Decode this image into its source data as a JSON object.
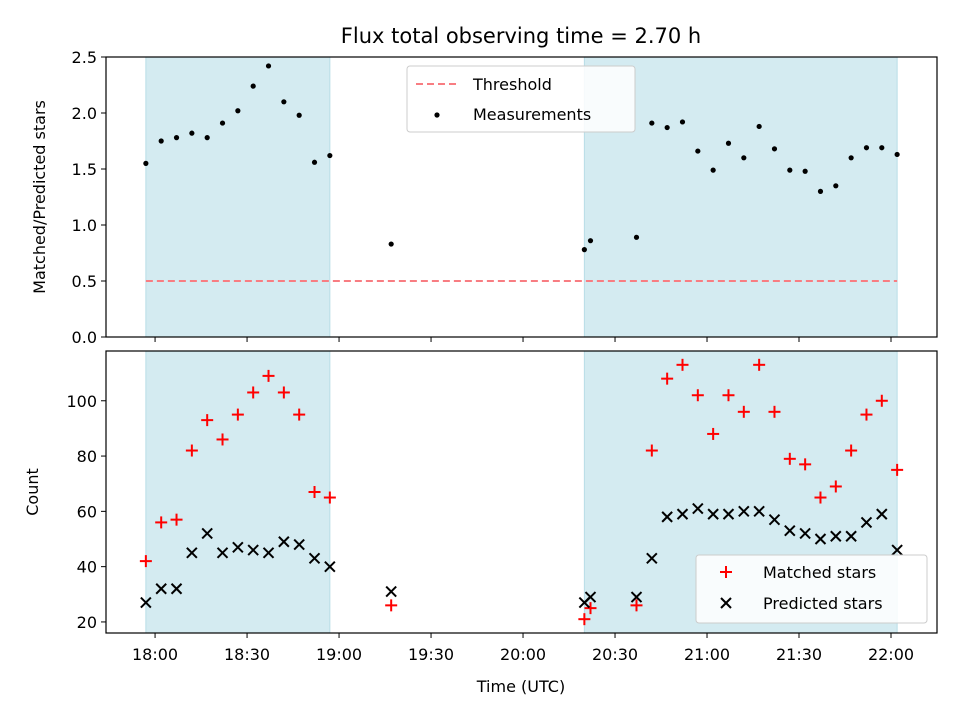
{
  "chart_data": [
    {
      "type": "scatter",
      "title": "Flux total observing time = 2.70 h",
      "xlabel": "",
      "ylabel": "Matched/Predicted stars",
      "ylim": [
        0,
        2.5
      ],
      "yticks": [
        0.0,
        0.5,
        1.0,
        1.5,
        2.0,
        2.5
      ],
      "ytick_labels": [
        "0.0",
        "0.5",
        "1.0",
        "1.5",
        "2.0",
        "2.5"
      ],
      "shaded_intervals_min": [
        [
          -3,
          57
        ],
        [
          140,
          242
        ]
      ],
      "threshold": {
        "name": "Threshold",
        "value": 0.5,
        "x_range_min": [
          -3,
          242
        ],
        "color": "#f87d82"
      },
      "legend_position": "upper-center",
      "series": [
        {
          "name": "Measurements",
          "color": "#000000",
          "x_min": [
            -3,
            2,
            7,
            12,
            17,
            22,
            27,
            32,
            37,
            42,
            47,
            52,
            57,
            77,
            140,
            142,
            157,
            162,
            167,
            172,
            177,
            182,
            187,
            192,
            197,
            202,
            207,
            212,
            217,
            222,
            227,
            232,
            237,
            242
          ],
          "y": [
            1.55,
            1.75,
            1.78,
            1.82,
            1.78,
            1.91,
            2.02,
            2.24,
            2.42,
            2.1,
            1.98,
            1.56,
            1.62,
            0.83,
            0.78,
            0.86,
            0.89,
            1.91,
            1.87,
            1.92,
            1.66,
            1.49,
            1.73,
            1.6,
            1.88,
            1.68,
            1.49,
            1.48,
            1.3,
            1.35,
            1.6,
            1.69,
            1.69,
            1.63
          ]
        }
      ]
    },
    {
      "type": "scatter",
      "xlabel": "Time (UTC)",
      "ylabel": "Count",
      "ylim": [
        16,
        118
      ],
      "yticks": [
        20,
        40,
        60,
        80,
        100
      ],
      "ytick_labels": [
        "20",
        "40",
        "60",
        "80",
        "100"
      ],
      "xlim_min": [
        -16,
        255
      ],
      "xticks_min": [
        0,
        30,
        60,
        90,
        120,
        150,
        180,
        210,
        240
      ],
      "xtick_labels": [
        "18:00",
        "18:30",
        "19:00",
        "19:30",
        "20:00",
        "20:30",
        "21:00",
        "21:30",
        "22:00"
      ],
      "shaded_intervals_min": [
        [
          -3,
          57
        ],
        [
          140,
          242
        ]
      ],
      "legend_position": "lower-right",
      "series": [
        {
          "name": "Matched stars",
          "marker": "plus",
          "color": "#ff0000",
          "x_min": [
            -3,
            2,
            7,
            12,
            17,
            22,
            27,
            32,
            37,
            42,
            47,
            52,
            57,
            77,
            140,
            142,
            157,
            162,
            167,
            172,
            177,
            182,
            187,
            192,
            197,
            202,
            207,
            212,
            217,
            222,
            227,
            232,
            237,
            242
          ],
          "y": [
            42,
            56,
            57,
            82,
            93,
            86,
            95,
            103,
            109,
            103,
            95,
            67,
            65,
            26,
            21,
            25,
            26,
            82,
            108,
            113,
            102,
            88,
            102,
            96,
            113,
            96,
            79,
            77,
            65,
            69,
            82,
            95,
            100,
            75
          ]
        },
        {
          "name": "Predicted stars",
          "marker": "x",
          "color": "#000000",
          "x_min": [
            -3,
            2,
            7,
            12,
            17,
            22,
            27,
            32,
            37,
            42,
            47,
            52,
            57,
            77,
            140,
            142,
            157,
            162,
            167,
            172,
            177,
            182,
            187,
            192,
            197,
            202,
            207,
            212,
            217,
            222,
            227,
            232,
            237,
            242
          ],
          "y": [
            27,
            32,
            32,
            45,
            52,
            45,
            47,
            46,
            45,
            49,
            48,
            43,
            40,
            31,
            27,
            29,
            29,
            43,
            58,
            59,
            61,
            59,
            59,
            60,
            60,
            57,
            53,
            52,
            50,
            51,
            51,
            56,
            59,
            46
          ]
        }
      ]
    }
  ]
}
